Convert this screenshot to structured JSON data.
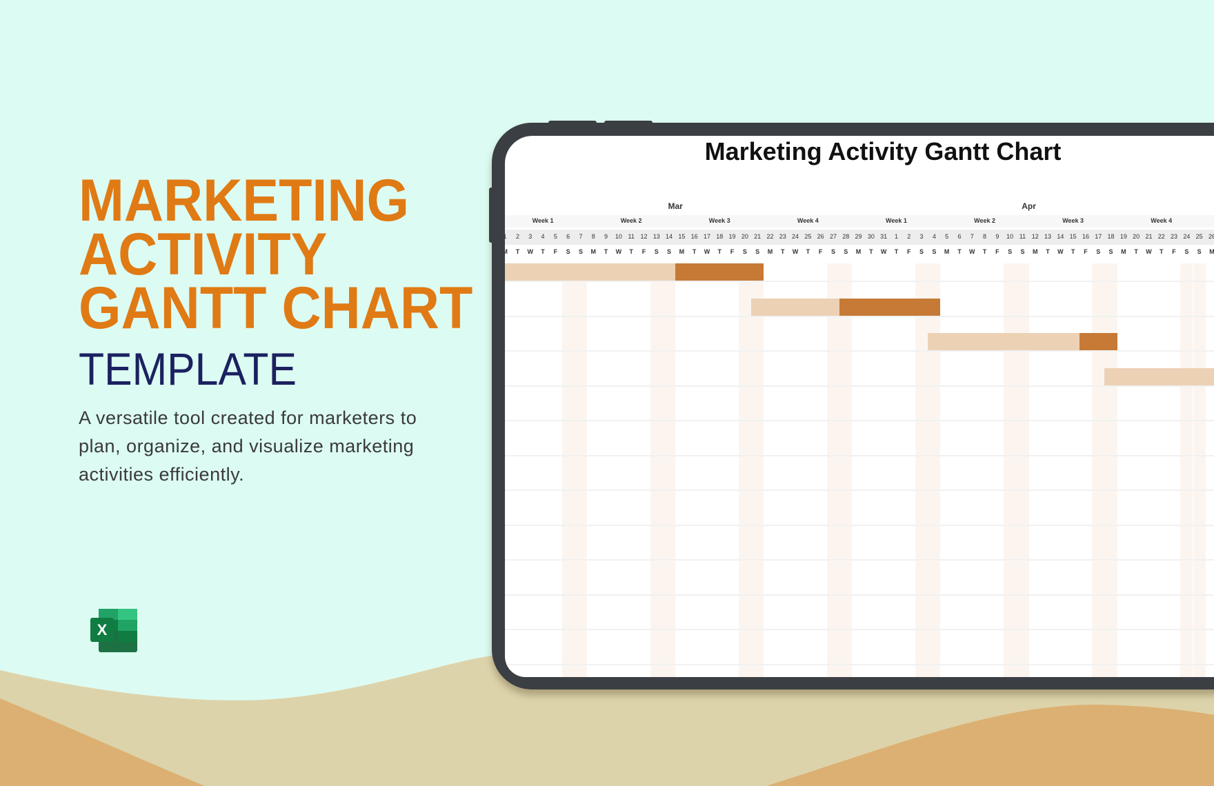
{
  "promo": {
    "headline_lines": [
      "MARKETING",
      "ACTIVITY",
      "GANTT CHART"
    ],
    "subtitle": "TEMPLATE",
    "description": "A versatile tool created for marketers to plan, organize, and visualize marketing activities efficiently.",
    "app_icon": "excel-icon",
    "colors": {
      "headline": "#e07a14",
      "subtitle": "#1b2160",
      "background": "#dcfbf2",
      "sand": "#ddd3aa",
      "orange": "#dcb072"
    }
  },
  "chart_data": {
    "type": "gantt",
    "title": "Marketing Activity Gantt Chart",
    "months": [
      {
        "label": "Mar",
        "weeks": [
          "Week 1",
          "Week 2",
          "Week 3",
          "Week 4"
        ]
      },
      {
        "label": "Apr",
        "weeks": [
          "Week 1",
          "Week 2",
          "Week 3",
          "Week 4"
        ]
      }
    ],
    "dates": [
      "1",
      "2",
      "3",
      "4",
      "5",
      "6",
      "7",
      "8",
      "9",
      "10",
      "11",
      "12",
      "13",
      "14",
      "15",
      "16",
      "17",
      "18",
      "19",
      "20",
      "21",
      "22",
      "23",
      "24",
      "25",
      "26",
      "27",
      "28",
      "29",
      "30",
      "31",
      "1",
      "2",
      "3",
      "4",
      "5",
      "6",
      "7",
      "8",
      "9",
      "10",
      "11",
      "12",
      "13",
      "14",
      "15",
      "16",
      "17",
      "18",
      "19",
      "20",
      "21",
      "22",
      "23",
      "24",
      "25",
      "26"
    ],
    "weekday_pattern": [
      "M",
      "T",
      "W",
      "T",
      "F",
      "S",
      "S"
    ],
    "colors": {
      "planned": "#ecd1b5",
      "progress": "#c67a36",
      "weekend": "#fcf5ef"
    },
    "tasks": [
      {
        "segments": [
          {
            "start": "Mar 1",
            "end": "Mar 14",
            "kind": "planned"
          },
          {
            "start": "Mar 15",
            "end": "Mar 21",
            "kind": "progress"
          }
        ]
      },
      {
        "segments": [
          {
            "start": "Mar 21",
            "end": "Mar 27",
            "kind": "planned"
          },
          {
            "start": "Mar 28",
            "end": "Apr 4",
            "kind": "progress"
          }
        ]
      },
      {
        "segments": [
          {
            "start": "Apr 4",
            "end": "Apr 15",
            "kind": "planned"
          },
          {
            "start": "Apr 16",
            "end": "Apr 18",
            "kind": "progress"
          }
        ]
      },
      {
        "segments": [
          {
            "start": "Apr 18",
            "end": "Apr 26",
            "kind": "planned"
          }
        ]
      },
      {
        "segments": []
      },
      {
        "segments": []
      },
      {
        "segments": []
      },
      {
        "segments": []
      },
      {
        "segments": []
      },
      {
        "segments": []
      },
      {
        "segments": []
      },
      {
        "segments": []
      }
    ]
  }
}
